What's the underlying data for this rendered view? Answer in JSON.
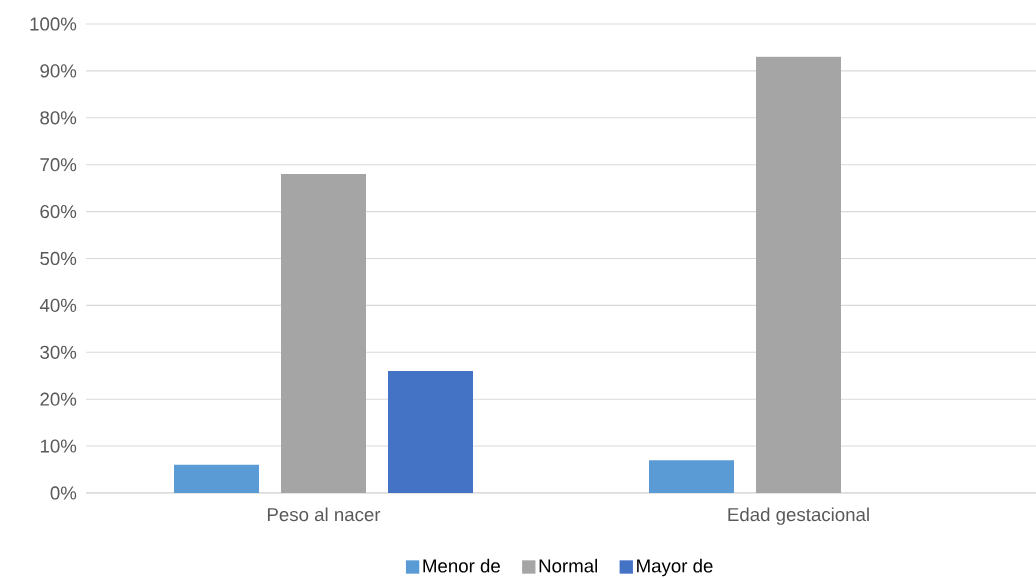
{
  "chart_data": {
    "type": "bar",
    "categories": [
      "Peso al nacer",
      "Edad gestacional"
    ],
    "series": [
      {
        "name": "Menor de",
        "color": "#5b9bd5",
        "values": [
          6,
          7
        ]
      },
      {
        "name": "Normal",
        "color": "#a5a5a5",
        "values": [
          68,
          93
        ]
      },
      {
        "name": "Mayor de",
        "color": "#4472c4",
        "values": [
          26,
          0
        ]
      }
    ],
    "ylim": [
      0,
      100
    ],
    "yticks": [
      {
        "value": 0,
        "label": "0%"
      },
      {
        "value": 10,
        "label": "10%"
      },
      {
        "value": 20,
        "label": "20%"
      },
      {
        "value": 30,
        "label": "30%"
      },
      {
        "value": 40,
        "label": "40%"
      },
      {
        "value": 50,
        "label": "50%"
      },
      {
        "value": 60,
        "label": "60%"
      },
      {
        "value": 70,
        "label": "70%"
      },
      {
        "value": 80,
        "label": "80%"
      },
      {
        "value": 90,
        "label": "90%"
      },
      {
        "value": 100,
        "label": "100%"
      }
    ],
    "grid": "y",
    "legend": "bottom"
  }
}
